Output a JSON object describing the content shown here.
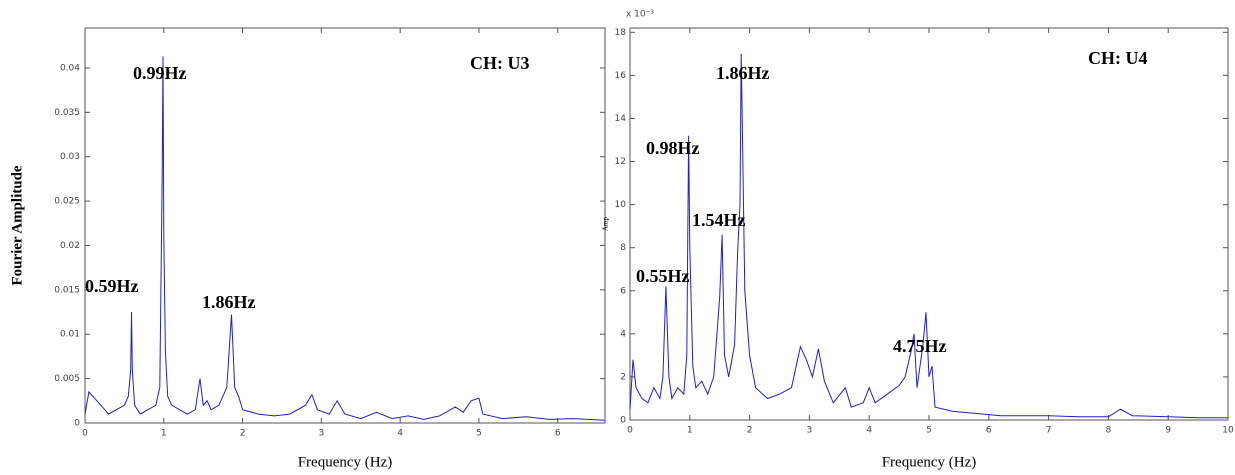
{
  "chart_data": [
    {
      "type": "line",
      "title": "CH: U3",
      "xlabel": "Frequency (Hz)",
      "ylabel": "Fourier Amplitude",
      "annotations": [
        "0.99Hz",
        "0.59Hz",
        "1.86Hz"
      ],
      "xlim": [
        0,
        6.6
      ],
      "xticks": [
        0,
        1,
        2,
        3,
        4,
        5,
        6
      ],
      "ylim": [
        0,
        0.0445
      ],
      "yticks": [
        0,
        0.005,
        0.01,
        0.015,
        0.02,
        0.025,
        0.03,
        0.035,
        0.04
      ],
      "color": "#2020c8",
      "x": [
        0.0,
        0.05,
        0.1,
        0.2,
        0.3,
        0.4,
        0.5,
        0.55,
        0.58,
        0.59,
        0.6,
        0.63,
        0.7,
        0.8,
        0.9,
        0.95,
        0.98,
        0.99,
        1.0,
        1.02,
        1.05,
        1.1,
        1.2,
        1.3,
        1.4,
        1.46,
        1.5,
        1.55,
        1.6,
        1.7,
        1.8,
        1.86,
        1.9,
        1.95,
        2.0,
        2.2,
        2.4,
        2.6,
        2.8,
        2.88,
        2.95,
        3.1,
        3.2,
        3.3,
        3.5,
        3.7,
        3.9,
        4.1,
        4.3,
        4.5,
        4.7,
        4.8,
        4.9,
        5.0,
        5.05,
        5.3,
        5.6,
        5.9,
        6.2,
        6.6
      ],
      "values": [
        0.001,
        0.0035,
        0.003,
        0.002,
        0.001,
        0.0015,
        0.002,
        0.003,
        0.006,
        0.0125,
        0.006,
        0.002,
        0.001,
        0.0015,
        0.002,
        0.004,
        0.028,
        0.0413,
        0.021,
        0.008,
        0.003,
        0.002,
        0.0015,
        0.001,
        0.0015,
        0.005,
        0.002,
        0.0025,
        0.0015,
        0.002,
        0.004,
        0.0122,
        0.004,
        0.003,
        0.0015,
        0.001,
        0.0008,
        0.001,
        0.002,
        0.0032,
        0.0015,
        0.001,
        0.0025,
        0.001,
        0.0005,
        0.0012,
        0.0005,
        0.0008,
        0.0004,
        0.0008,
        0.0018,
        0.0012,
        0.0025,
        0.0028,
        0.001,
        0.0005,
        0.0007,
        0.0004,
        0.0005,
        0.0003
      ]
    },
    {
      "type": "line",
      "title": "CH: U4",
      "xlabel": "Frequency (Hz)",
      "ylabel": "Amp",
      "y_multiplier": "x 10⁻³",
      "annotations": [
        "1.86Hz",
        "0.98Hz",
        "1.54Hz",
        "0.55Hz",
        "4.75Hz"
      ],
      "xlim": [
        0,
        10
      ],
      "xticks": [
        0,
        1,
        2,
        3,
        4,
        5,
        6,
        7,
        8,
        9,
        10
      ],
      "ylim": [
        0,
        18.2
      ],
      "yticks": [
        0,
        2,
        4,
        6,
        8,
        10,
        12,
        14,
        16,
        18
      ],
      "color": "#2020c8",
      "x": [
        0,
        0.05,
        0.1,
        0.2,
        0.3,
        0.4,
        0.5,
        0.55,
        0.6,
        0.65,
        0.7,
        0.8,
        0.9,
        0.95,
        0.98,
        1.0,
        1.05,
        1.1,
        1.2,
        1.3,
        1.4,
        1.5,
        1.54,
        1.58,
        1.65,
        1.75,
        1.8,
        1.84,
        1.86,
        1.88,
        1.92,
        2.0,
        2.1,
        2.3,
        2.5,
        2.7,
        2.85,
        2.95,
        3.05,
        3.15,
        3.25,
        3.4,
        3.6,
        3.7,
        3.9,
        4.0,
        4.1,
        4.3,
        4.5,
        4.6,
        4.7,
        4.75,
        4.8,
        4.9,
        4.95,
        5.0,
        5.05,
        5.1,
        5.4,
        5.8,
        6.2,
        6.6,
        7.0,
        7.5,
        8.0,
        8.2,
        8.4,
        9.0,
        9.5,
        10.0
      ],
      "values": [
        0.5,
        2.8,
        1.5,
        1,
        0.8,
        1.5,
        1,
        2,
        6.2,
        2,
        1,
        1.5,
        1.2,
        3,
        13.2,
        8,
        2.5,
        1.5,
        1.8,
        1.2,
        2,
        5.7,
        8.6,
        3,
        2,
        3.5,
        7.8,
        10,
        17,
        13.4,
        6,
        3,
        1.5,
        1,
        1.2,
        1.5,
        3.4,
        2.8,
        2,
        3.3,
        1.8,
        0.8,
        1.5,
        0.6,
        0.8,
        1.5,
        0.8,
        1.2,
        1.6,
        2,
        3.2,
        4,
        1.5,
        3.5,
        5,
        2,
        2.5,
        0.6,
        0.4,
        0.3,
        0.2,
        0.2,
        0.2,
        0.15,
        0.15,
        0.5,
        0.2,
        0.15,
        0.1,
        0.1
      ]
    }
  ]
}
